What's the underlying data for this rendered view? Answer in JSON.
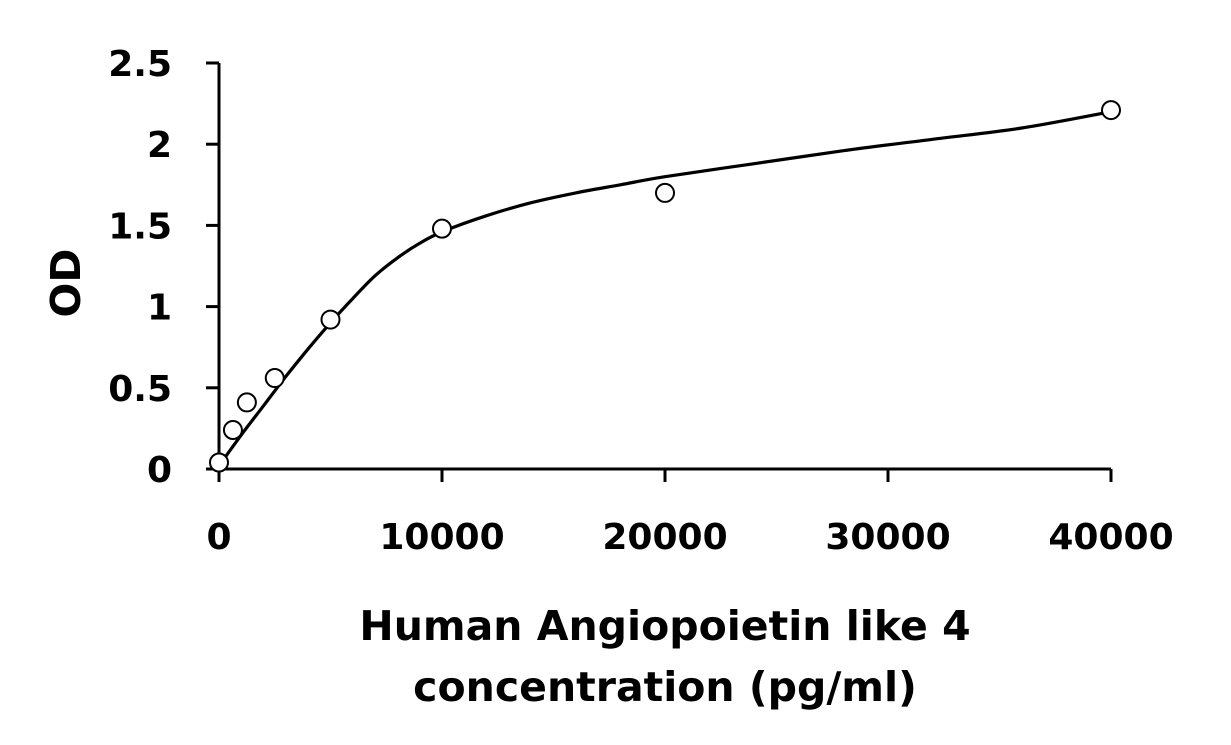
{
  "chart_data": {
    "type": "scatter",
    "xlabel_lines": [
      "Human Angiopoietin like 4",
      "concentration (pg/ml)"
    ],
    "ylabel": "OD",
    "xlim": [
      0,
      40000
    ],
    "ylim": [
      0,
      2.5
    ],
    "x_ticks": [
      0,
      10000,
      20000,
      30000,
      40000
    ],
    "x_tick_labels": [
      "0",
      "10000",
      "20000",
      "30000",
      "40000"
    ],
    "y_ticks": [
      0,
      0.5,
      1,
      1.5,
      2,
      2.5
    ],
    "y_tick_labels": [
      "0",
      "0.5",
      "1",
      "1.5",
      "2",
      "2.5"
    ],
    "grid": false,
    "series": [
      {
        "x": [
          0,
          625,
          1250,
          2500,
          5000,
          10000,
          20000,
          40000
        ],
        "y": [
          0.04,
          0.24,
          0.41,
          0.56,
          0.92,
          1.48,
          1.7,
          2.21
        ],
        "marker": "open-circle"
      }
    ],
    "fit_curve": {
      "x": [
        0,
        1000,
        2000,
        3000,
        4000,
        5000,
        6000,
        7000,
        8000,
        9000,
        10000,
        12000,
        14000,
        16000,
        18000,
        20000,
        24000,
        28000,
        32000,
        36000,
        40000
      ],
      "y": [
        0.02,
        0.21,
        0.39,
        0.57,
        0.74,
        0.9,
        1.05,
        1.19,
        1.3,
        1.39,
        1.46,
        1.56,
        1.64,
        1.7,
        1.75,
        1.8,
        1.88,
        1.96,
        2.03,
        2.1,
        2.2
      ]
    }
  }
}
